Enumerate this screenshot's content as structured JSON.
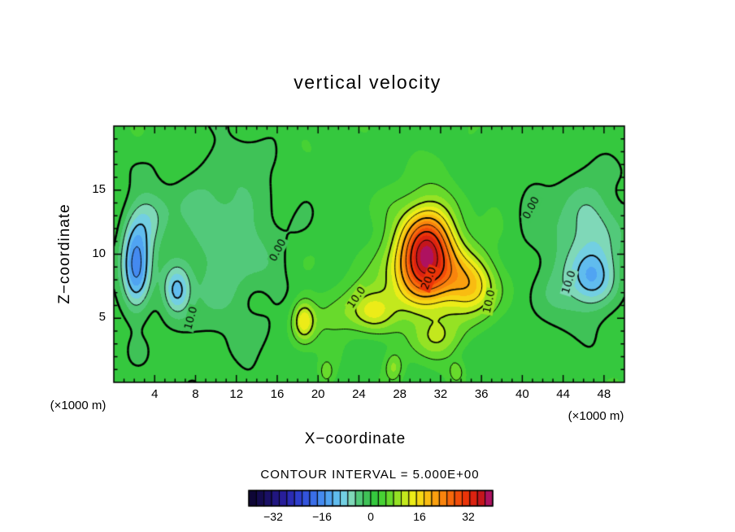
{
  "title": "vertical velocity",
  "annotations": {
    "contour_interval": "CONTOUR INTERVAL = 5.000E+00",
    "x_unit_left": "(×1000 m)",
    "x_unit_right": "(×1000 m)"
  },
  "colors": {
    "background": "#ffffff",
    "axis": "#000000",
    "text": "#000000"
  },
  "chart_data": {
    "type": "heatmap",
    "title": "vertical velocity",
    "xlabel": "X−coordinate",
    "ylabel": "Z−coordinate",
    "x_range": [
      0,
      50
    ],
    "z_range": [
      0,
      20
    ],
    "x_ticks": [
      4,
      8,
      12,
      16,
      20,
      24,
      28,
      32,
      36,
      40,
      44,
      48
    ],
    "x_tick_labels": [
      "4",
      "8",
      "12",
      "16",
      "20",
      "24",
      "28",
      "32",
      "36",
      "40",
      "44",
      "48"
    ],
    "y_ticks": [
      5,
      10,
      15
    ],
    "y_tick_labels": [
      "5",
      "10",
      "15"
    ],
    "minor_tick_step": 1,
    "grid": false,
    "contour_interval": 5.0,
    "contour_levels": [
      -25,
      -20,
      -15,
      -10,
      -5,
      0,
      5,
      10,
      15,
      20,
      25,
      30,
      35
    ],
    "line_styles": {
      "negative": "dashed",
      "zero": "thick-solid",
      "positive": "solid"
    },
    "extrema": {
      "max": 37,
      "min": -19
    },
    "contour_labels": [
      {
        "text": "0.00",
        "x": 16.1,
        "z": 10.3,
        "angle": -62
      },
      {
        "text": "10.0",
        "x": 7.6,
        "z": 5.0,
        "angle": -75
      },
      {
        "text": "10.0",
        "x": 23.8,
        "z": 6.6,
        "angle": -55
      },
      {
        "text": "20.0",
        "x": 30.9,
        "z": 8.1,
        "angle": -68
      },
      {
        "text": "10.0",
        "x": 36.8,
        "z": 6.3,
        "angle": -78
      },
      {
        "text": "0.00",
        "x": 40.9,
        "z": 13.6,
        "angle": -62
      },
      {
        "text": "10.0",
        "x": 44.6,
        "z": 7.8,
        "angle": -72
      }
    ],
    "field_model": {
      "base": 1.5,
      "gaussians": [
        {
          "a": 28,
          "x": 30.6,
          "z": 10.6,
          "sx": 2.6,
          "sz": 3.4
        },
        {
          "a": 14,
          "x": 31.0,
          "z": 8.2,
          "sx": 5.2,
          "sz": 3.0
        },
        {
          "a": 9,
          "x": 35.0,
          "z": 7.5,
          "sx": 2.4,
          "sz": 2.2
        },
        {
          "a": 7,
          "x": 31.5,
          "z": 3.5,
          "sx": 2.6,
          "sz": 1.6
        },
        {
          "a": 9,
          "x": 25.5,
          "z": 5.5,
          "sx": 2.2,
          "sz": 1.6
        },
        {
          "a": 12,
          "x": 18.6,
          "z": 4.8,
          "sx": 1.1,
          "sz": 1.6
        },
        {
          "a": 5,
          "x": 21.5,
          "z": 5.2,
          "sx": 2.5,
          "sz": 1.8
        },
        {
          "a": -6,
          "x": 11.0,
          "z": 11.0,
          "sx": 5.0,
          "sz": 7.0
        },
        {
          "a": -18,
          "x": 2.2,
          "z": 9.0,
          "sx": 1.4,
          "sz": 3.2
        },
        {
          "a": -11,
          "x": 6.2,
          "z": 7.2,
          "sx": 1.3,
          "sz": 1.8
        },
        {
          "a": -7,
          "x": 3.5,
          "z": 13.0,
          "sx": 2.0,
          "sz": 2.2
        },
        {
          "a": -12,
          "x": 46.8,
          "z": 8.0,
          "sx": 2.2,
          "sz": 2.2
        },
        {
          "a": -6,
          "x": 47.5,
          "z": 12.5,
          "sx": 2.8,
          "sz": 3.0
        },
        {
          "a": -4,
          "x": 44.0,
          "z": 10.0,
          "sx": 4.0,
          "sz": 6.0
        },
        {
          "a": 5,
          "x": 20.8,
          "z": 0.8,
          "sx": 0.7,
          "sz": 0.9
        },
        {
          "a": 6,
          "x": 27.4,
          "z": 1.2,
          "sx": 0.9,
          "sz": 1.1
        },
        {
          "a": 5,
          "x": 33.6,
          "z": 0.8,
          "sx": 0.8,
          "sz": 0.9
        }
      ],
      "waves": [
        {
          "a": 0.9,
          "fx": 0.55,
          "px": 0.3,
          "fz": 0.85,
          "pz": 1.0
        },
        {
          "a": 0.7,
          "fx": 1.15,
          "px": 2.0,
          "fz": 0.5,
          "pz": -0.6
        },
        {
          "a": 0.45,
          "fx": 0.8,
          "px": -0.4,
          "fz": 1.3,
          "pz": 0.5
        }
      ]
    },
    "colorbar": {
      "range": [
        -40,
        40
      ],
      "cell_step": 2.5,
      "tick_values": [
        -32,
        -16,
        0,
        16,
        32
      ],
      "tick_labels": [
        "−32",
        "−16",
        "0",
        "16",
        "32"
      ],
      "palette": [
        "#0e0636",
        "#140b4e",
        "#1a1066",
        "#211680",
        "#281e9a",
        "#2b2cb4",
        "#2e3ecc",
        "#3354dc",
        "#3a6ee8",
        "#448af0",
        "#50a4f2",
        "#60bcee",
        "#72cfe2",
        "#7fd8b8",
        "#52c97a",
        "#3fc257",
        "#35c83e",
        "#47d134",
        "#68da2c",
        "#95e224",
        "#c3e81d",
        "#ecec18",
        "#f6d714",
        "#f9bc11",
        "#faa00f",
        "#f9840d",
        "#f7680b",
        "#f24c09",
        "#ea3408",
        "#dc2310",
        "#c4161c",
        "#ae1260"
      ]
    }
  }
}
